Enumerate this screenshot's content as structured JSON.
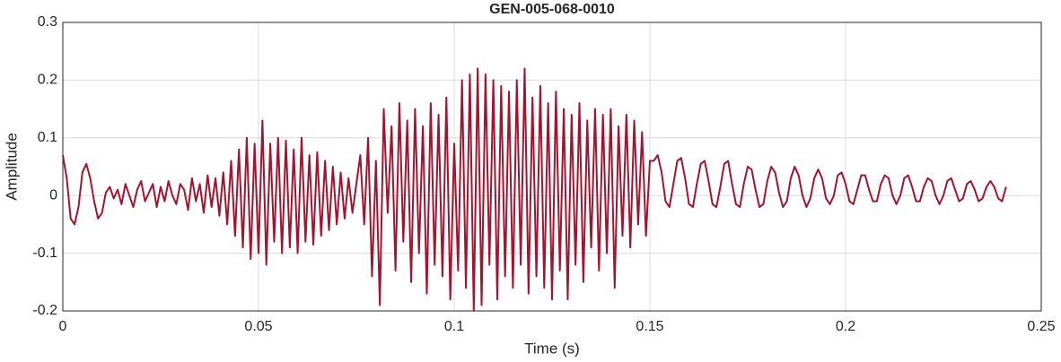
{
  "chart_data": {
    "type": "line",
    "title": "GEN-005-068-0010",
    "xlabel": "Time (s)",
    "ylabel": "Amplitude",
    "color": "#a2142f",
    "grid": true,
    "xlim": [
      0,
      0.25
    ],
    "xticks": [
      0,
      0.05,
      0.1,
      0.15,
      0.2,
      0.25
    ],
    "ylim": [
      -0.2,
      0.3
    ],
    "yticks": [
      -0.2,
      -0.1,
      0,
      0.1,
      0.2,
      0.3
    ],
    "x": [
      0,
      0.001,
      0.002,
      0.003,
      0.004,
      0.005,
      0.006,
      0.007,
      0.008,
      0.009,
      0.01,
      0.011,
      0.012,
      0.013,
      0.014,
      0.015,
      0.016,
      0.017,
      0.018,
      0.019,
      0.02,
      0.021,
      0.022,
      0.023,
      0.024,
      0.025,
      0.026,
      0.027,
      0.028,
      0.029,
      0.03,
      0.031,
      0.032,
      0.033,
      0.034,
      0.035,
      0.036,
      0.037,
      0.038,
      0.039,
      0.04,
      0.041,
      0.042,
      0.043,
      0.044,
      0.045,
      0.046,
      0.047,
      0.048,
      0.049,
      0.05,
      0.051,
      0.052,
      0.053,
      0.054,
      0.055,
      0.056,
      0.057,
      0.058,
      0.059,
      0.06,
      0.061,
      0.062,
      0.063,
      0.064,
      0.065,
      0.066,
      0.067,
      0.068,
      0.069,
      0.07,
      0.071,
      0.072,
      0.073,
      0.074,
      0.075,
      0.076,
      0.077,
      0.078,
      0.079,
      0.08,
      0.081,
      0.082,
      0.083,
      0.084,
      0.085,
      0.086,
      0.087,
      0.088,
      0.089,
      0.09,
      0.091,
      0.092,
      0.093,
      0.094,
      0.095,
      0.096,
      0.097,
      0.098,
      0.099,
      0.1,
      0.101,
      0.102,
      0.103,
      0.104,
      0.105,
      0.106,
      0.107,
      0.108,
      0.109,
      0.11,
      0.111,
      0.112,
      0.113,
      0.114,
      0.115,
      0.116,
      0.117,
      0.118,
      0.119,
      0.12,
      0.121,
      0.122,
      0.123,
      0.124,
      0.125,
      0.126,
      0.127,
      0.128,
      0.129,
      0.13,
      0.131,
      0.132,
      0.133,
      0.134,
      0.135,
      0.136,
      0.137,
      0.138,
      0.139,
      0.14,
      0.141,
      0.142,
      0.143,
      0.144,
      0.145,
      0.146,
      0.147,
      0.148,
      0.149,
      0.15,
      0.151,
      0.152,
      0.153,
      0.154,
      0.155,
      0.156,
      0.157,
      0.158,
      0.159,
      0.16,
      0.161,
      0.162,
      0.163,
      0.164,
      0.165,
      0.166,
      0.167,
      0.168,
      0.169,
      0.17,
      0.171,
      0.172,
      0.173,
      0.174,
      0.175,
      0.176,
      0.177,
      0.178,
      0.179,
      0.18,
      0.181,
      0.182,
      0.183,
      0.184,
      0.185,
      0.186,
      0.187,
      0.188,
      0.189,
      0.19,
      0.191,
      0.192,
      0.193,
      0.194,
      0.195,
      0.196,
      0.197,
      0.198,
      0.199,
      0.2,
      0.201,
      0.202,
      0.203,
      0.204,
      0.205,
      0.206,
      0.207,
      0.208,
      0.209,
      0.21,
      0.211,
      0.212,
      0.213,
      0.214,
      0.215,
      0.216,
      0.217,
      0.218,
      0.219,
      0.22,
      0.221,
      0.222,
      0.223,
      0.224,
      0.225,
      0.226,
      0.227,
      0.228,
      0.229,
      0.23,
      0.231,
      0.232,
      0.233,
      0.234,
      0.235,
      0.236,
      0.237,
      0.238,
      0.239,
      0.24,
      0.241
    ],
    "values": [
      0.07,
      0.03,
      -0.04,
      -0.05,
      -0.02,
      0.04,
      0.055,
      0.03,
      -0.01,
      -0.04,
      -0.03,
      0.005,
      0.015,
      -0.005,
      0.01,
      -0.015,
      0.02,
      0.0,
      -0.02,
      0.01,
      0.025,
      -0.01,
      0.005,
      0.02,
      -0.02,
      0.015,
      -0.01,
      0.025,
      0.0,
      -0.015,
      0.02,
      0.01,
      -0.025,
      0.03,
      -0.01,
      0.02,
      -0.03,
      0.035,
      -0.02,
      0.03,
      -0.035,
      0.04,
      -0.05,
      0.06,
      -0.07,
      0.08,
      -0.09,
      0.1,
      -0.11,
      0.09,
      -0.1,
      0.13,
      -0.12,
      0.09,
      -0.08,
      0.1,
      -0.1,
      0.095,
      -0.09,
      0.08,
      -0.1,
      0.1,
      -0.08,
      0.07,
      -0.085,
      0.075,
      -0.07,
      0.06,
      -0.06,
      0.05,
      -0.05,
      0.04,
      -0.04,
      0.03,
      -0.03,
      0.02,
      0.07,
      -0.05,
      0.1,
      -0.14,
      0.06,
      -0.19,
      0.15,
      -0.03,
      0.12,
      -0.13,
      0.16,
      -0.08,
      0.13,
      -0.15,
      0.15,
      -0.1,
      0.12,
      -0.17,
      0.16,
      -0.12,
      0.14,
      -0.14,
      0.17,
      -0.18,
      0.09,
      -0.13,
      0.2,
      -0.16,
      0.21,
      -0.2,
      0.22,
      -0.19,
      0.21,
      -0.12,
      0.2,
      -0.18,
      0.19,
      -0.14,
      0.18,
      -0.16,
      0.2,
      -0.12,
      0.22,
      -0.17,
      0.17,
      -0.14,
      0.19,
      -0.16,
      0.16,
      -0.18,
      0.18,
      -0.13,
      0.15,
      -0.18,
      0.14,
      -0.12,
      0.16,
      -0.15,
      0.13,
      -0.09,
      0.15,
      -0.13,
      0.14,
      -0.1,
      0.15,
      -0.16,
      0.12,
      -0.07,
      0.14,
      -0.09,
      0.13,
      -0.05,
      0.11,
      -0.07,
      0.06,
      0.06,
      0.07,
      0.04,
      -0.01,
      -0.02,
      0.02,
      0.06,
      0.065,
      0.03,
      -0.015,
      -0.02,
      0.02,
      0.055,
      0.06,
      0.025,
      -0.015,
      -0.02,
      0.015,
      0.055,
      0.06,
      0.02,
      -0.015,
      -0.02,
      0.02,
      0.05,
      0.045,
      0.01,
      -0.02,
      -0.015,
      0.025,
      0.05,
      0.04,
      0.005,
      -0.02,
      -0.01,
      0.03,
      0.05,
      0.035,
      0.0,
      -0.02,
      -0.005,
      0.03,
      0.045,
      0.03,
      -0.005,
      -0.015,
      0.0,
      0.035,
      0.04,
      0.02,
      -0.01,
      -0.015,
      0.01,
      0.035,
      0.035,
      0.01,
      -0.01,
      -0.01,
      0.02,
      0.035,
      0.03,
      0.0,
      -0.015,
      0.0,
      0.03,
      0.035,
      0.015,
      -0.01,
      -0.01,
      0.015,
      0.03,
      0.025,
      0.0,
      -0.015,
      0.0,
      0.025,
      0.03,
      0.01,
      -0.01,
      -0.005,
      0.02,
      0.025,
      0.01,
      -0.01,
      -0.005,
      0.015,
      0.025,
      0.015,
      -0.005,
      -0.01,
      0.015
    ]
  }
}
